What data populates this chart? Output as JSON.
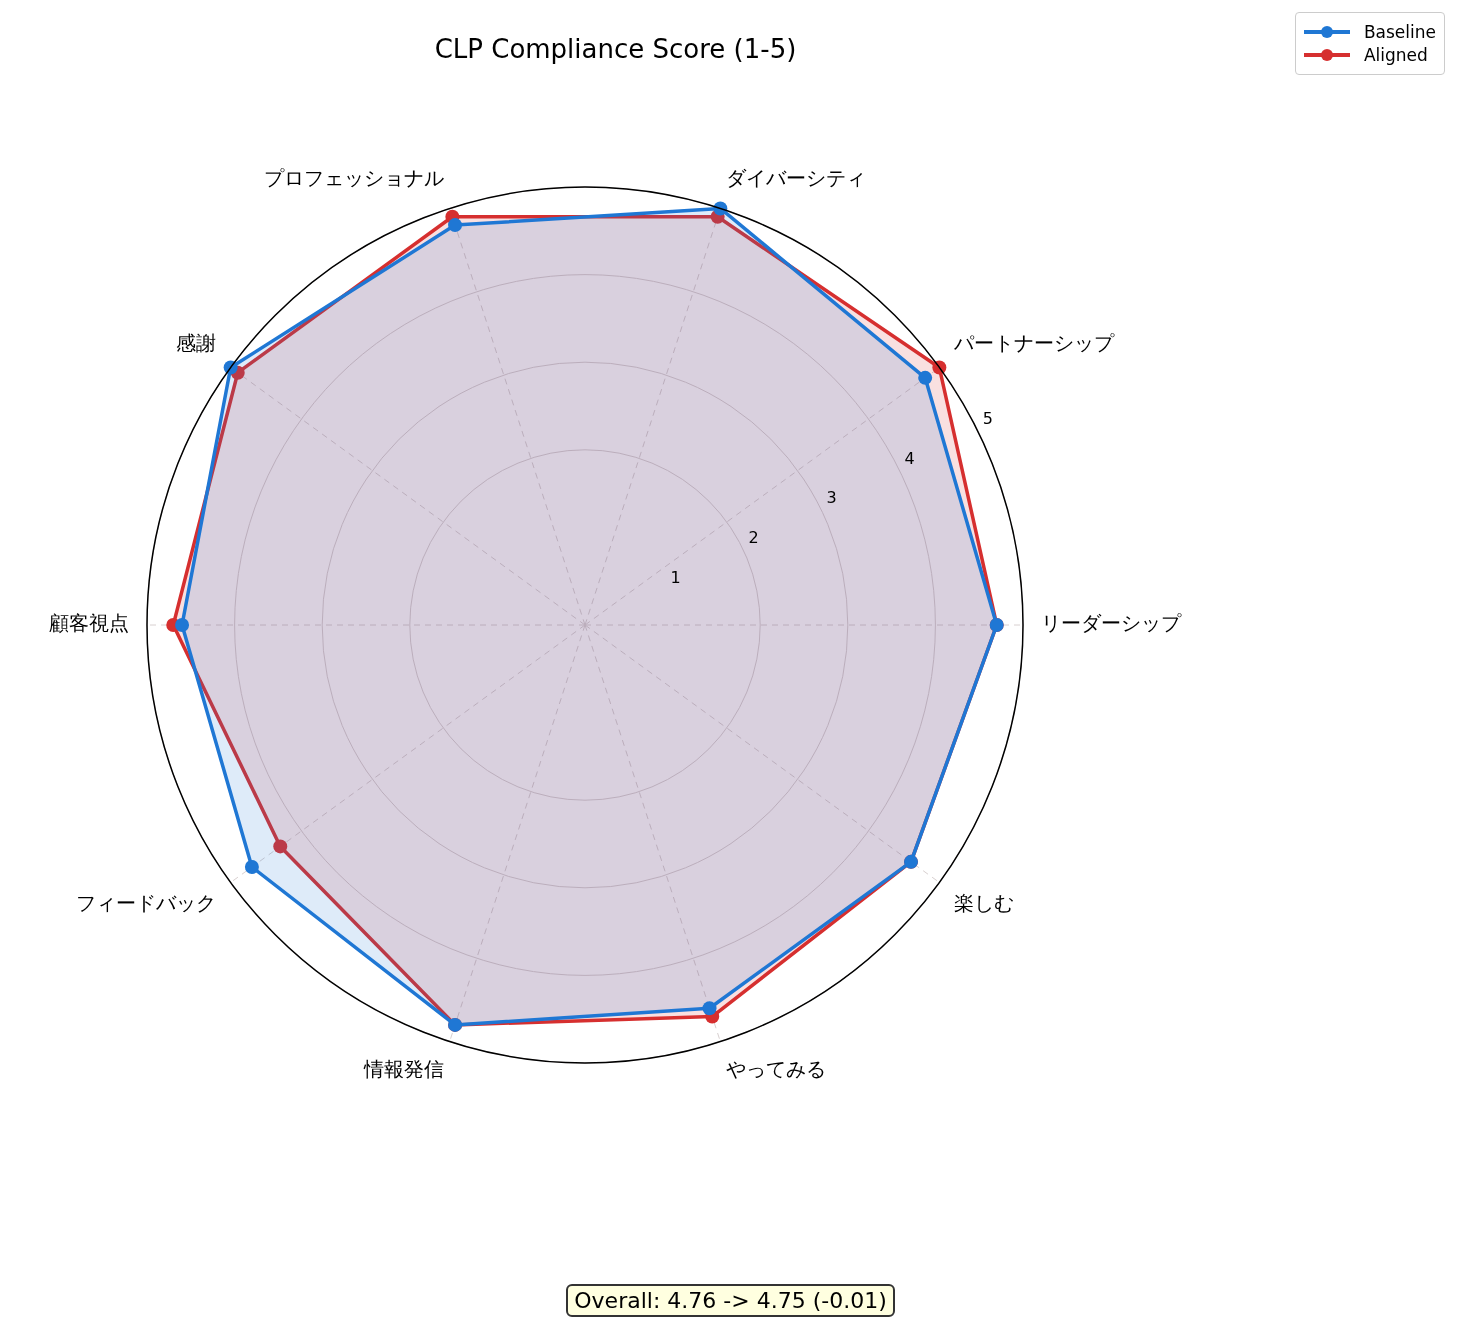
{
  "chart_data": {
    "type": "radar",
    "title": "CLP Compliance Score (1-5)",
    "categories": [
      "ダイバーシティ",
      "パートナーシップ",
      "リーダーシップ",
      "楽しむ",
      "やってみる",
      "情報発信",
      "フィードバック",
      "顧客視点",
      "感謝",
      "プロフェッショナル"
    ],
    "series": [
      {
        "name": "Baseline",
        "color": "#1f77d4",
        "values": [
          5.0,
          4.8,
          4.7,
          4.6,
          4.6,
          4.8,
          4.7,
          4.6,
          5.0,
          4.8
        ]
      },
      {
        "name": "Aligned",
        "color": "#d62f2f",
        "values": [
          4.9,
          5.0,
          4.7,
          4.6,
          4.7,
          4.8,
          4.3,
          4.7,
          4.9,
          4.9
        ]
      }
    ],
    "ylim": [
      0,
      5
    ],
    "yticks": [
      1,
      2,
      3,
      4,
      5
    ],
    "grid": true,
    "legend": "top right",
    "marker": "circle",
    "line_style": "solid",
    "annotations": [
      "Overall: 4.76 -> 4.75 (-0.01)"
    ]
  }
}
